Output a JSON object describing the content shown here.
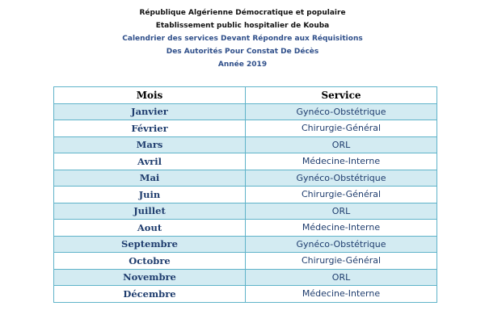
{
  "header": {
    "line1": "République Algérienne Démocratique et populaire",
    "line2": "Etablissement public hospitalier de Kouba",
    "line3": "Calendrier des services Devant  Répondre aux Réquisitions",
    "line4": "Des Autorités Pour Constat De Décès",
    "line5": "Année 2019"
  },
  "table": {
    "columns": [
      "Mois",
      "Service"
    ],
    "rows": [
      [
        "Janvier",
        "Gynéco-Obstétrique"
      ],
      [
        "Février",
        "Chirurgie-Général"
      ],
      [
        "Mars",
        "ORL"
      ],
      [
        "Avril",
        "Médecine-Interne"
      ],
      [
        "Mai",
        "Gynéco-Obstétrique"
      ],
      [
        "Juin",
        "Chirurgie-Général"
      ],
      [
        "Juillet",
        "ORL"
      ],
      [
        "Aout",
        "Médecine-Interne"
      ],
      [
        "Septembre",
        "Gynéco-Obstétrique"
      ],
      [
        "Octobre",
        "Chirurgie-Général"
      ],
      [
        "Novembre",
        "ORL"
      ],
      [
        "Décembre",
        "Médecine-Interne"
      ]
    ]
  },
  "colors": {
    "border": "#5fb3c9",
    "row_fill": "#d3ebf2",
    "text": "#1f3d6e"
  }
}
